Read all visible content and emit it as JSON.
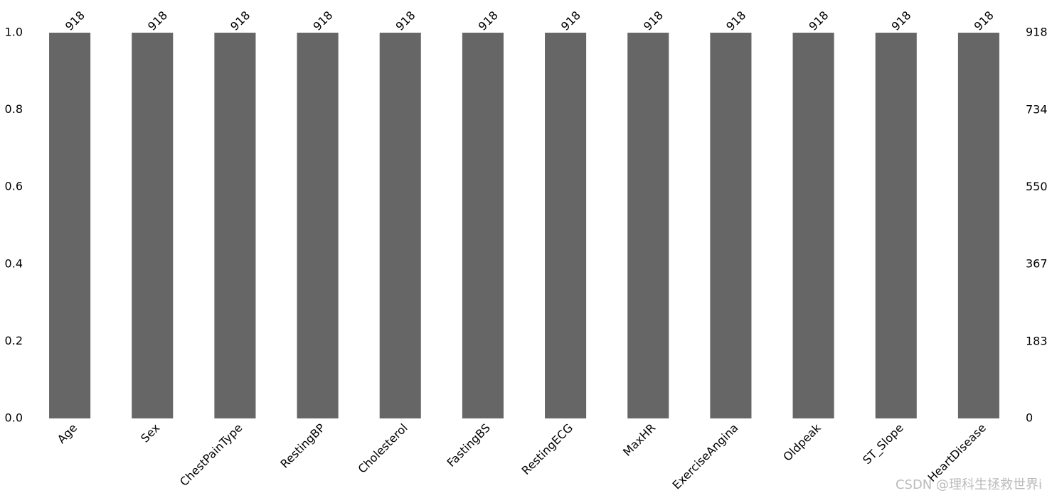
{
  "chart_data": {
    "type": "bar",
    "categories": [
      "Age",
      "Sex",
      "ChestPainType",
      "RestingBP",
      "Cholesterol",
      "FastingBS",
      "RestingECG",
      "MaxHR",
      "ExerciseAngina",
      "Oldpeak",
      "ST_Slope",
      "HeartDisease"
    ],
    "series": [
      {
        "axis": "y2",
        "color": "#666666",
        "values": [
          918,
          918,
          918,
          918,
          918,
          918,
          918,
          918,
          918,
          918,
          918,
          918
        ]
      }
    ],
    "ylim": [
      0,
      1
    ],
    "yticks": [
      {
        "value": 0,
        "label": "0.0"
      },
      0.2,
      0.4,
      0.6,
      0.8,
      {
        "value": 1,
        "label": "1.0"
      }
    ],
    "y2lim": [
      0,
      918
    ],
    "y2ticks": [
      0,
      183,
      367,
      550,
      734,
      918
    ],
    "grid": false,
    "watermark": "CSDN @理科生拯救世界i"
  }
}
